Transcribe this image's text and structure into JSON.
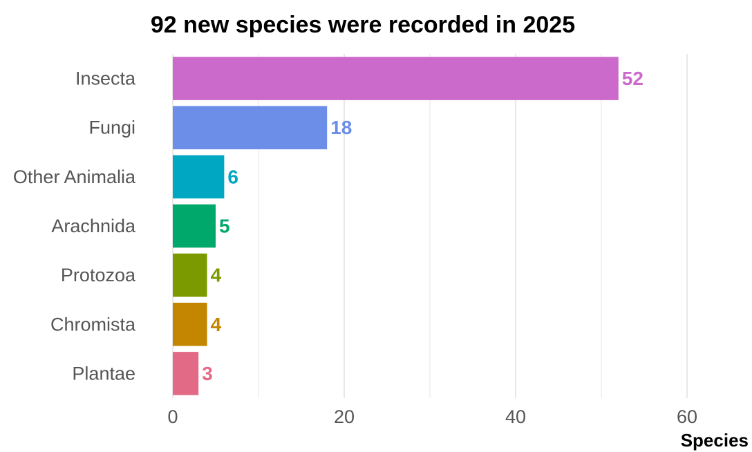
{
  "chart_data": {
    "type": "bar",
    "orientation": "horizontal",
    "title": "92 new species were recorded in 2025",
    "xlabel": "Species",
    "ylabel": "",
    "xlim": [
      0,
      60
    ],
    "major_ticks": [
      0,
      20,
      40,
      60
    ],
    "minor_ticks": [
      10,
      30,
      50
    ],
    "grid": true,
    "legend": "none",
    "categories": [
      "Insecta",
      "Fungi",
      "Other Animalia",
      "Arachnida",
      "Protozoa",
      "Chromista",
      "Plantae"
    ],
    "values": [
      52,
      18,
      6,
      5,
      4,
      4,
      3
    ],
    "colors": [
      "#cc6acc",
      "#6c8de8",
      "#00a7c2",
      "#00a86b",
      "#7a9a00",
      "#c48500",
      "#e26a86"
    ]
  }
}
